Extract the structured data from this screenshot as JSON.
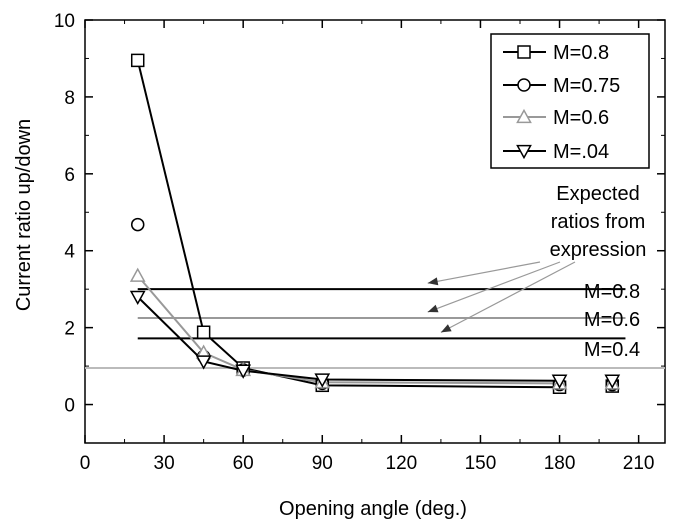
{
  "chart_data": {
    "type": "line",
    "xlabel": "Opening angle (deg.)",
    "ylabel": "Current ratio up/down",
    "xlim": [
      0,
      220
    ],
    "ylim": [
      -1,
      10
    ],
    "xticks": [
      0,
      30,
      60,
      90,
      120,
      150,
      180,
      210
    ],
    "yticks": [
      0,
      2,
      4,
      6,
      8,
      10
    ],
    "x_tick_labels": [
      "0",
      "30",
      "60",
      "90",
      "120",
      "150",
      "180",
      "210"
    ],
    "y_tick_labels": [
      "0",
      "2",
      "4",
      "6",
      "8",
      "10"
    ],
    "grid": false,
    "legend_position": "top-right",
    "series": [
      {
        "name": "M=0.8",
        "marker": "square",
        "color": "#000000",
        "x": [
          20,
          45,
          60,
          90,
          180,
          200
        ],
        "y": [
          8.95,
          1.88,
          0.95,
          0.5,
          0.45,
          0.48
        ],
        "connect_points": 5
      },
      {
        "name": "M=0.75",
        "marker": "circle",
        "color": "#000000",
        "x": [
          20,
          45,
          60,
          90,
          180,
          200
        ],
        "y": [
          4.68,
          1.25,
          0.9,
          0.55,
          0.52,
          0.52
        ],
        "connect_points": 0
      },
      {
        "name": "M=0.6",
        "marker": "triangle-up",
        "color": "#999999",
        "x": [
          20,
          45,
          60,
          90,
          180,
          200
        ],
        "y": [
          3.35,
          1.35,
          0.9,
          0.58,
          0.55,
          0.55
        ],
        "connect_points": 5
      },
      {
        "name": "M=.04",
        "marker": "triangle-down",
        "color": "#000000",
        "x": [
          20,
          45,
          60,
          90,
          180,
          200
        ],
        "y": [
          2.8,
          1.12,
          0.88,
          0.65,
          0.62,
          0.62
        ],
        "connect_points": 5
      }
    ],
    "reference_lines": [
      {
        "label": "M=0.8",
        "y": 3.0,
        "x_range": [
          20,
          205
        ],
        "color": "#000000"
      },
      {
        "label": "M=0.6",
        "y": 2.25,
        "x_range": [
          20,
          205
        ],
        "color": "#999999"
      },
      {
        "label": "M=0.4",
        "y": 1.72,
        "x_range": [
          20,
          205
        ],
        "color": "#000000"
      },
      {
        "label": "",
        "y": 0.95,
        "x_range": [
          0,
          220
        ],
        "color": "#bbbbbb"
      }
    ],
    "annotation": {
      "lines": [
        "Expected",
        "ratios from",
        "expression"
      ],
      "arrow_targets": [
        [
          130,
          3.0
        ],
        [
          130,
          2.25
        ],
        [
          135,
          1.72
        ]
      ]
    }
  }
}
